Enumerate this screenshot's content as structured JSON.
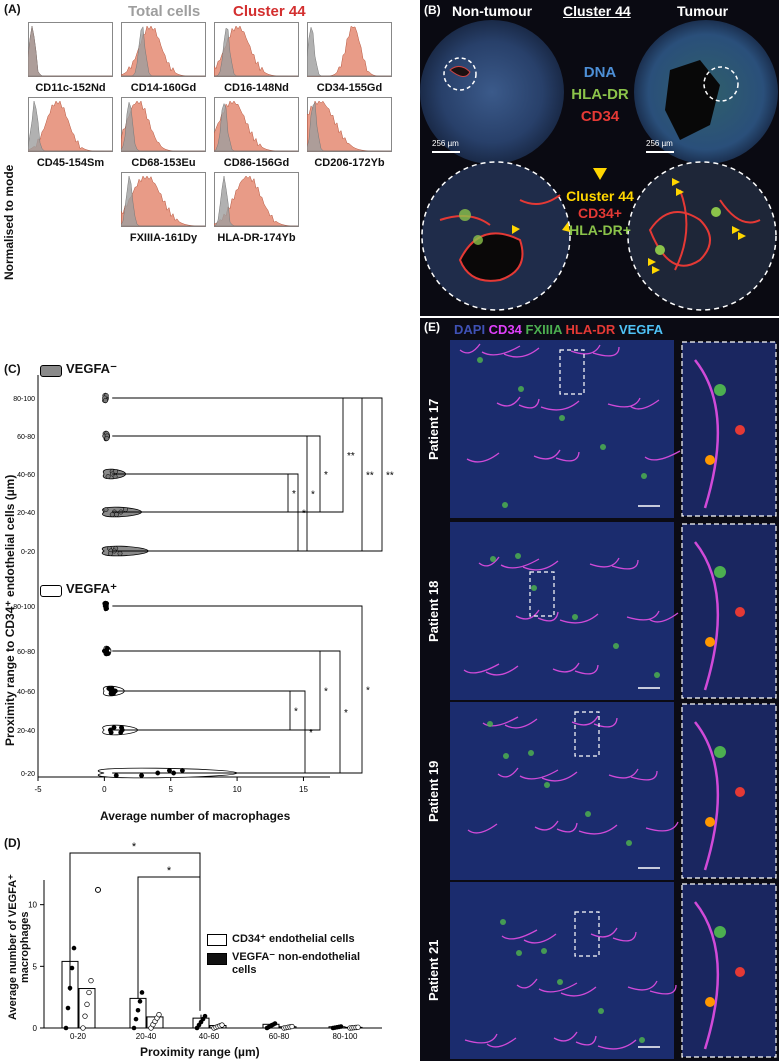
{
  "panel_labels": {
    "a": "(A)",
    "b": "(B)",
    "c": "(C)",
    "d": "(D)",
    "e": "(E)"
  },
  "panel_a": {
    "legend": {
      "total": "Total cells",
      "cluster": "Cluster 44"
    },
    "ylabel": "Normalised to mode",
    "markers": [
      "CD11c-152Nd",
      "CD14-160Gd",
      "CD16-148Nd",
      "CD34-155Gd",
      "CD45-154Sm",
      "CD68-153Eu",
      "CD86-156Gd",
      "CD206-172Yb",
      "FXIIIA-161Dy",
      "HLA-DR-174Yb"
    ],
    "colors": {
      "total": "#9e9e9e",
      "cluster": "#e07a5f"
    }
  },
  "panel_b": {
    "non_tumour": "Non-tumour",
    "cluster": "Cluster 44",
    "tumour": "Tumour",
    "legend": [
      {
        "text": "DNA",
        "color": "#4d8fd6"
      },
      {
        "text": "HLA-DR",
        "color": "#8bc34a"
      },
      {
        "text": "CD34",
        "color": "#e53935"
      }
    ],
    "scalebar_left": "256 µm",
    "scalebar_right": "256 µm",
    "legend2": [
      {
        "text": "Cluster 44",
        "color": "#ffd600"
      },
      {
        "text": "CD34+",
        "color": "#e53935"
      },
      {
        "text": "HLA-DR+",
        "color": "#8bc34a"
      }
    ]
  },
  "panel_c": {
    "legend_neg": "VEGFA⁻",
    "legend_pos": "VEGFA⁺",
    "ylabel": "Proximity range to CD34⁺ endothelial cells (µm)",
    "xlabel": "Average number of macrophages",
    "categories": [
      "80-100",
      "60-80",
      "40-60",
      "20-40",
      "0-20"
    ],
    "xticks": [
      "-5",
      "0",
      "5",
      "10",
      "15"
    ],
    "sig_neg": [
      "*",
      "*",
      "*",
      "**",
      "**",
      "*",
      "**"
    ],
    "sig_pos": [
      "*",
      "*",
      "*",
      "*",
      "*"
    ]
  },
  "panel_d": {
    "ylabel": "Average number of VEGFA⁺ macrophages",
    "xlabel": "Proximity range (µm)",
    "yticks": [
      "0",
      "5",
      "10"
    ],
    "categories": [
      "0-20",
      "20-40",
      "40-60",
      "60-80",
      "80-100"
    ],
    "legend_white": "CD34⁺ endothelial cells",
    "legend_black": "VEGFA⁻ non-endothelial cells",
    "sig": [
      "*",
      "*"
    ]
  },
  "panel_e": {
    "channels": [
      {
        "text": "DAPI",
        "color": "#3f51b5"
      },
      {
        "text": "CD34",
        "color": "#e040fb"
      },
      {
        "text": "FXIIIA",
        "color": "#4caf50"
      },
      {
        "text": "HLA-DR",
        "color": "#e53935"
      },
      {
        "text": "VEGFA",
        "color": "#4fc3f7"
      }
    ],
    "patients": [
      "Patient 17",
      "Patient 18",
      "Patient 19",
      "Patient 21"
    ]
  },
  "chart_data": [
    {
      "type": "bar",
      "title": "",
      "xlabel": "Proximity range (µm)",
      "ylabel": "Average number of VEGFA⁺ macrophages",
      "categories": [
        "0-20",
        "20-40",
        "40-60",
        "60-80",
        "80-100"
      ],
      "ylim": [
        0,
        12
      ],
      "series": [
        {
          "name": "CD34⁺ endothelial cells",
          "values": [
            5.4,
            2.4,
            0.8,
            0.3,
            0.1
          ]
        },
        {
          "name": "VEGFA⁻ non-endothelial cells",
          "values": [
            3.2,
            0.9,
            0.2,
            0.1,
            0.05
          ]
        }
      ]
    },
    {
      "type": "violin",
      "xlabel": "Average number of macrophages",
      "ylabel": "Proximity range to CD34⁺ endothelial cells (µm)",
      "xlim": [
        -5,
        17
      ],
      "categories": [
        "80-100",
        "60-80",
        "40-60",
        "20-40",
        "0-20"
      ],
      "series": [
        {
          "name": "VEGFA⁻",
          "medians": [
            0,
            0,
            0.2,
            0.5,
            1.0
          ]
        },
        {
          "name": "VEGFA⁺",
          "medians": [
            0,
            0,
            0.3,
            0.5,
            1.2
          ]
        }
      ]
    }
  ]
}
